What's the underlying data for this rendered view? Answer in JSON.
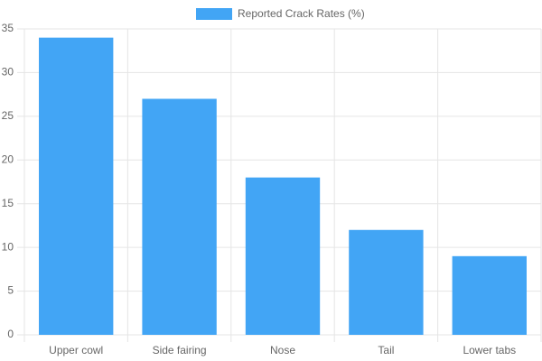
{
  "chart_data": {
    "type": "bar",
    "categories": [
      "Upper cowl",
      "Side fairing",
      "Nose",
      "Tail",
      "Lower tabs"
    ],
    "series": [
      {
        "name": "Reported Crack Rates (%)",
        "color": "#42a5f5",
        "values": [
          34,
          27,
          18,
          12,
          9
        ]
      }
    ],
    "ylim": [
      0,
      35
    ],
    "yticks": [
      0,
      5,
      10,
      15,
      20,
      25,
      30,
      35
    ],
    "grid": true,
    "legend": "top"
  }
}
